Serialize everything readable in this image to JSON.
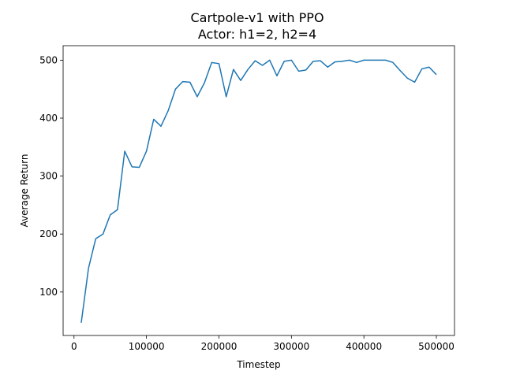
{
  "chart_data": {
    "type": "line",
    "title": "Cartpole-v1 with PPO",
    "subtitle": "Actor: h1=2, h2=4",
    "xlabel": "Timestep",
    "ylabel": "Average Return",
    "xlim": [
      -15000,
      525000
    ],
    "ylim": [
      25,
      525
    ],
    "xticks": [
      0,
      100000,
      200000,
      300000,
      400000,
      500000
    ],
    "xtick_labels": [
      "0",
      "100000",
      "200000",
      "300000",
      "400000",
      "500000"
    ],
    "yticks": [
      100,
      200,
      300,
      400,
      500
    ],
    "ytick_labels": [
      "100",
      "200",
      "300",
      "400",
      "500"
    ],
    "grid": false,
    "series": [
      {
        "color": "#1f77b4",
        "x": [
          10000,
          20000,
          30000,
          40000,
          50000,
          60000,
          70000,
          80000,
          90000,
          100000,
          110000,
          120000,
          130000,
          140000,
          150000,
          160000,
          170000,
          180000,
          190000,
          200000,
          210000,
          220000,
          230000,
          240000,
          250000,
          260000,
          270000,
          280000,
          290000,
          300000,
          310000,
          320000,
          330000,
          340000,
          350000,
          360000,
          370000,
          380000,
          390000,
          400000,
          410000,
          420000,
          430000,
          440000,
          450000,
          460000,
          470000,
          480000,
          490000,
          500000
        ],
        "y": [
          47,
          141,
          192,
          200,
          233,
          242,
          343,
          316,
          315,
          343,
          398,
          386,
          413,
          450,
          463,
          462,
          437,
          461,
          496,
          494,
          437,
          484,
          465,
          484,
          499,
          491,
          500,
          473,
          498,
          500,
          481,
          483,
          498,
          499,
          488,
          497,
          498,
          500,
          496,
          500,
          500,
          500,
          500,
          496,
          482,
          469,
          462,
          485,
          488,
          475
        ]
      }
    ]
  }
}
